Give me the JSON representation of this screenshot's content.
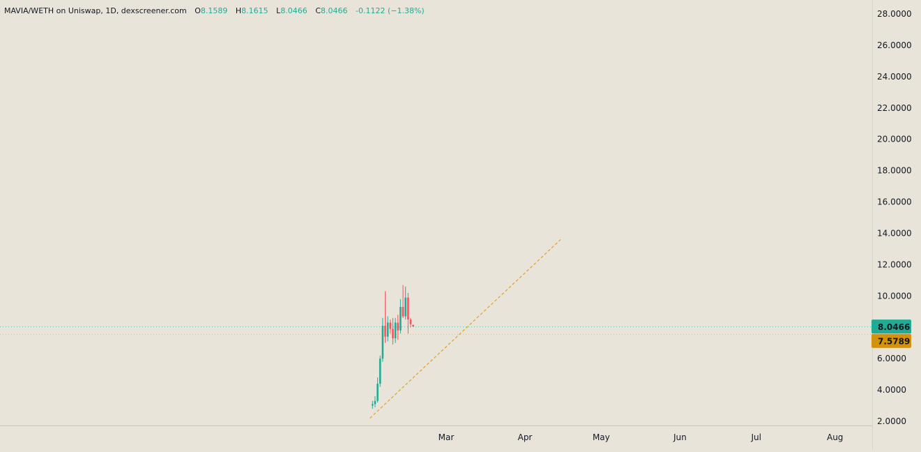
{
  "legend": {
    "title": "MAVIA/WETH on Uniswap, 1D, dexscreener.com",
    "o_label": "O",
    "o_value": "8.1589",
    "h_label": "H",
    "h_value": "8.1615",
    "l_label": "L",
    "l_value": "8.0466",
    "c_label": "C",
    "c_value": "8.0466",
    "change": "-0.1122 (−1.38%)"
  },
  "colors": {
    "background": "#e8e4da",
    "up": "#22ab94",
    "down": "#f7525f",
    "trendline": "#e0a020",
    "last_price_bg": "#22ab94",
    "marker_bg": "#d4920a",
    "axis_text": "#131722"
  },
  "chart_data": {
    "type": "candlestick",
    "y_ticks": [
      "28.0000",
      "26.0000",
      "24.0000",
      "22.0000",
      "20.0000",
      "18.0000",
      "16.0000",
      "14.0000",
      "12.0000",
      "10.0000",
      "6.0000",
      "4.0000",
      "2.0000"
    ],
    "y_tick_values": [
      28,
      26,
      24,
      22,
      20,
      18,
      16,
      14,
      12,
      10,
      6,
      4,
      2
    ],
    "ylim": [
      1.7,
      29.2
    ],
    "x_ticks": [
      {
        "label": "Mar",
        "date": "2024-03-01"
      },
      {
        "label": "Apr",
        "date": "2024-04-01"
      },
      {
        "label": "May",
        "date": "2024-05-01"
      },
      {
        "label": "Jun",
        "date": "2024-06-01"
      },
      {
        "label": "Jul",
        "date": "2024-07-01"
      },
      {
        "label": "Aug",
        "date": "2024-08-01"
      }
    ],
    "last_price": "8.0466",
    "price_marker": "7.5789",
    "candles": [
      {
        "date": "2024-02-01",
        "open": 3.0,
        "high": 3.3,
        "low": 2.8,
        "close": 3.1
      },
      {
        "date": "2024-02-02",
        "open": 3.1,
        "high": 3.6,
        "low": 2.9,
        "close": 3.3
      },
      {
        "date": "2024-02-03",
        "open": 3.3,
        "high": 4.8,
        "low": 3.2,
        "close": 4.4
      },
      {
        "date": "2024-02-04",
        "open": 4.4,
        "high": 6.2,
        "low": 4.2,
        "close": 6.0
      },
      {
        "date": "2024-02-05",
        "open": 6.0,
        "high": 8.6,
        "low": 5.8,
        "close": 8.1
      },
      {
        "date": "2024-02-06",
        "open": 8.1,
        "high": 10.3,
        "low": 7.0,
        "close": 7.4
      },
      {
        "date": "2024-02-07",
        "open": 7.4,
        "high": 8.7,
        "low": 7.1,
        "close": 8.3
      },
      {
        "date": "2024-02-08",
        "open": 8.3,
        "high": 8.5,
        "low": 7.6,
        "close": 7.9
      },
      {
        "date": "2024-02-09",
        "open": 7.9,
        "high": 8.6,
        "low": 6.9,
        "close": 7.3
      },
      {
        "date": "2024-02-10",
        "open": 7.3,
        "high": 8.6,
        "low": 7.0,
        "close": 8.3
      },
      {
        "date": "2024-02-11",
        "open": 8.3,
        "high": 8.8,
        "low": 7.2,
        "close": 7.8
      },
      {
        "date": "2024-02-12",
        "open": 7.8,
        "high": 9.8,
        "low": 7.6,
        "close": 9.3
      },
      {
        "date": "2024-02-13",
        "open": 9.3,
        "high": 10.7,
        "low": 8.6,
        "close": 8.7
      },
      {
        "date": "2024-02-14",
        "open": 8.7,
        "high": 10.6,
        "low": 8.5,
        "close": 9.9
      },
      {
        "date": "2024-02-15",
        "open": 9.9,
        "high": 10.2,
        "low": 7.6,
        "close": 8.5
      },
      {
        "date": "2024-02-16",
        "open": 8.5,
        "high": 8.6,
        "low": 8.0,
        "close": 8.2
      },
      {
        "date": "2024-02-17",
        "open": 8.1589,
        "high": 8.1615,
        "low": 8.0466,
        "close": 8.0466
      }
    ],
    "trendline": {
      "start": {
        "date": "2024-01-31",
        "value": 2.2
      },
      "end": {
        "date": "2024-04-15",
        "value": 13.6
      }
    }
  }
}
